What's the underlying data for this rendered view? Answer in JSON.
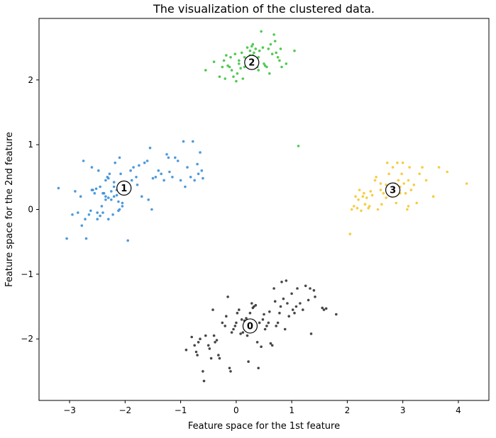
{
  "chart_data": {
    "type": "scatter",
    "title": "The visualization of the clustered data.",
    "xlabel": "Feature space for the 1st feature",
    "ylabel": "Feature space for the 2nd feature",
    "xlim": [
      -3.55,
      4.55
    ],
    "ylim": [
      -2.95,
      2.95
    ],
    "xticks": [
      -3,
      -2,
      -1,
      0,
      1,
      2,
      3,
      4
    ],
    "yticks": [
      -2,
      -1,
      0,
      1,
      2
    ],
    "xtick_labels": [
      "−3",
      "−2",
      "−1",
      "0",
      "1",
      "2",
      "3",
      "4"
    ],
    "ytick_labels": [
      "−2",
      "−1",
      "0",
      "1",
      "2"
    ],
    "grid": false,
    "series": [
      {
        "cluster": "0",
        "color": "#333333",
        "center": [
          0.25,
          -1.8
        ],
        "points": [
          [
            -0.9,
            -2.17
          ],
          [
            -0.8,
            -1.97
          ],
          [
            -0.75,
            -2.1
          ],
          [
            -0.72,
            -2.2
          ],
          [
            -0.7,
            -2.25
          ],
          [
            -0.68,
            -2.05
          ],
          [
            -0.65,
            -2.0
          ],
          [
            -0.6,
            -2.5
          ],
          [
            -0.58,
            -2.65
          ],
          [
            -0.55,
            -1.95
          ],
          [
            -0.5,
            -2.1
          ],
          [
            -0.48,
            -2.15
          ],
          [
            -0.45,
            -2.3
          ],
          [
            -0.42,
            -1.55
          ],
          [
            -0.4,
            -1.95
          ],
          [
            -0.38,
            -2.05
          ],
          [
            -0.35,
            -2.02
          ],
          [
            -0.32,
            -2.25
          ],
          [
            -0.3,
            -2.3
          ],
          [
            -0.25,
            -1.75
          ],
          [
            -0.2,
            -1.8
          ],
          [
            -0.18,
            -1.65
          ],
          [
            -0.15,
            -1.35
          ],
          [
            -0.12,
            -2.45
          ],
          [
            -0.1,
            -2.5
          ],
          [
            -0.08,
            -1.9
          ],
          [
            -0.05,
            -1.85
          ],
          [
            -0.02,
            -1.8
          ],
          [
            0.0,
            -1.75
          ],
          [
            0.02,
            -1.6
          ],
          [
            0.05,
            -1.55
          ],
          [
            0.08,
            -1.92
          ],
          [
            0.1,
            -1.7
          ],
          [
            0.12,
            -1.9
          ],
          [
            0.15,
            -1.72
          ],
          [
            0.18,
            -1.68
          ],
          [
            0.2,
            -1.95
          ],
          [
            0.22,
            -2.35
          ],
          [
            0.25,
            -1.6
          ],
          [
            0.28,
            -1.45
          ],
          [
            0.3,
            -1.52
          ],
          [
            0.32,
            -1.5
          ],
          [
            0.35,
            -1.48
          ],
          [
            0.38,
            -2.05
          ],
          [
            0.4,
            -2.45
          ],
          [
            0.42,
            -1.75
          ],
          [
            0.45,
            -2.12
          ],
          [
            0.48,
            -1.7
          ],
          [
            0.5,
            -1.62
          ],
          [
            0.52,
            -1.85
          ],
          [
            0.55,
            -1.8
          ],
          [
            0.58,
            -1.75
          ],
          [
            0.6,
            -1.58
          ],
          [
            0.62,
            -2.07
          ],
          [
            0.65,
            -2.1
          ],
          [
            0.68,
            -1.22
          ],
          [
            0.7,
            -1.42
          ],
          [
            0.72,
            -1.8
          ],
          [
            0.75,
            -1.75
          ],
          [
            0.78,
            -1.6
          ],
          [
            0.8,
            -1.5
          ],
          [
            0.82,
            -1.12
          ],
          [
            0.85,
            -1.38
          ],
          [
            0.88,
            -1.85
          ],
          [
            0.9,
            -1.1
          ],
          [
            0.92,
            -1.45
          ],
          [
            0.95,
            -1.65
          ],
          [
            1.0,
            -1.3
          ],
          [
            1.02,
            -1.55
          ],
          [
            1.05,
            -1.6
          ],
          [
            1.08,
            -1.5
          ],
          [
            1.1,
            -1.22
          ],
          [
            1.15,
            -1.45
          ],
          [
            1.2,
            -1.55
          ],
          [
            1.25,
            -1.18
          ],
          [
            1.3,
            -1.4
          ],
          [
            1.33,
            -1.22
          ],
          [
            1.35,
            -1.92
          ],
          [
            1.4,
            -1.25
          ],
          [
            1.42,
            -1.35
          ],
          [
            1.55,
            -1.52
          ],
          [
            1.58,
            -1.55
          ],
          [
            1.62,
            -1.53
          ],
          [
            1.8,
            -1.62
          ]
        ]
      },
      {
        "cluster": "1",
        "color": "#3a8fd9",
        "center": [
          -2.02,
          0.33
        ],
        "points": [
          [
            -3.2,
            0.33
          ],
          [
            -3.05,
            -0.45
          ],
          [
            -2.95,
            -0.08
          ],
          [
            -2.9,
            0.28
          ],
          [
            -2.85,
            -0.05
          ],
          [
            -2.8,
            0.2
          ],
          [
            -2.78,
            -0.25
          ],
          [
            -2.75,
            0.75
          ],
          [
            -2.72,
            -0.15
          ],
          [
            -2.7,
            -0.45
          ],
          [
            -2.65,
            -0.08
          ],
          [
            -2.6,
            0.65
          ],
          [
            -2.58,
            0.3
          ],
          [
            -2.55,
            0.25
          ],
          [
            -2.52,
            0.32
          ],
          [
            -2.5,
            -0.15
          ],
          [
            -2.48,
            0.6
          ],
          [
            -2.45,
            0.35
          ],
          [
            -2.42,
            0.05
          ],
          [
            -2.4,
            -0.05
          ],
          [
            -2.38,
            0.25
          ],
          [
            -2.35,
            0.45
          ],
          [
            -2.32,
            0.5
          ],
          [
            -2.3,
            0.18
          ],
          [
            -2.28,
            0.55
          ],
          [
            -2.25,
            0.15
          ],
          [
            -2.22,
            -0.08
          ],
          [
            -2.2,
            0.2
          ],
          [
            -2.18,
            0.72
          ],
          [
            -2.15,
            0.3
          ],
          [
            -2.12,
            0.12
          ],
          [
            -2.1,
            0.8
          ],
          [
            -2.08,
            0.55
          ],
          [
            -2.05,
            0.05
          ],
          [
            -2.02,
            0.25
          ],
          [
            -2.0,
            0.42
          ],
          [
            -1.98,
            0.38
          ],
          [
            -1.95,
            -0.48
          ],
          [
            -1.9,
            0.6
          ],
          [
            -1.88,
            0.45
          ],
          [
            -1.85,
            0.65
          ],
          [
            -1.8,
            0.5
          ],
          [
            -1.78,
            0.38
          ],
          [
            -1.75,
            0.68
          ],
          [
            -1.7,
            0.2
          ],
          [
            -1.65,
            0.72
          ],
          [
            -1.6,
            0.75
          ],
          [
            -1.58,
            0.15
          ],
          [
            -1.55,
            0.95
          ],
          [
            -1.52,
            0.0
          ],
          [
            -1.5,
            0.48
          ],
          [
            -1.45,
            0.5
          ],
          [
            -1.4,
            0.6
          ],
          [
            -1.35,
            0.55
          ],
          [
            -1.3,
            0.45
          ],
          [
            -1.25,
            0.85
          ],
          [
            -1.22,
            0.8
          ],
          [
            -1.2,
            0.58
          ],
          [
            -1.15,
            0.5
          ],
          [
            -1.1,
            0.8
          ],
          [
            -1.05,
            0.75
          ],
          [
            -1.0,
            0.45
          ],
          [
            -0.95,
            1.05
          ],
          [
            -0.92,
            0.35
          ],
          [
            -0.88,
            0.65
          ],
          [
            -0.82,
            0.5
          ],
          [
            -0.78,
            1.05
          ],
          [
            -0.75,
            0.45
          ],
          [
            -0.7,
            0.7
          ],
          [
            -0.68,
            0.55
          ],
          [
            -0.65,
            0.88
          ],
          [
            -0.62,
            0.6
          ],
          [
            -0.6,
            0.48
          ],
          [
            -2.3,
            0.48
          ],
          [
            -2.35,
            0.15
          ],
          [
            -2.6,
            0.3
          ],
          [
            -2.4,
            0.25
          ],
          [
            -2.2,
            0.35
          ],
          [
            -2.25,
            0.28
          ],
          [
            -2.15,
            0.22
          ],
          [
            -2.45,
            -0.1
          ],
          [
            -2.62,
            -0.02
          ],
          [
            -2.5,
            -0.05
          ],
          [
            -2.3,
            -0.15
          ],
          [
            -2.1,
            0.0
          ],
          [
            -2.05,
            0.1
          ],
          [
            -2.35,
            0.2
          ],
          [
            -2.2,
            0.42
          ],
          [
            -2.12,
            -0.02
          ],
          [
            -2.0,
            0.3
          ]
        ]
      },
      {
        "cluster": "2",
        "color": "#3ec43e",
        "center": [
          0.28,
          2.27
        ],
        "points": [
          [
            -0.55,
            2.15
          ],
          [
            -0.4,
            2.28
          ],
          [
            -0.3,
            2.05
          ],
          [
            -0.25,
            2.2
          ],
          [
            -0.22,
            2.3
          ],
          [
            -0.2,
            2.02
          ],
          [
            -0.18,
            2.38
          ],
          [
            -0.15,
            2.22
          ],
          [
            -0.12,
            2.2
          ],
          [
            -0.1,
            2.35
          ],
          [
            -0.08,
            2.15
          ],
          [
            -0.05,
            2.05
          ],
          [
            -0.02,
            2.4
          ],
          [
            0.0,
            1.98
          ],
          [
            0.02,
            2.1
          ],
          [
            0.05,
            2.3
          ],
          [
            0.08,
            2.18
          ],
          [
            0.1,
            2.42
          ],
          [
            0.12,
            2.02
          ],
          [
            0.15,
            2.2
          ],
          [
            0.18,
            2.25
          ],
          [
            0.2,
            2.5
          ],
          [
            0.22,
            2.33
          ],
          [
            0.25,
            2.45
          ],
          [
            0.28,
            2.52
          ],
          [
            0.3,
            2.38
          ],
          [
            0.32,
            2.42
          ],
          [
            0.35,
            2.48
          ],
          [
            0.38,
            2.2
          ],
          [
            0.4,
            2.15
          ],
          [
            0.42,
            2.45
          ],
          [
            0.45,
            2.75
          ],
          [
            0.48,
            2.5
          ],
          [
            0.5,
            2.25
          ],
          [
            0.52,
            2.22
          ],
          [
            0.55,
            2.2
          ],
          [
            0.58,
            2.48
          ],
          [
            0.6,
            2.1
          ],
          [
            0.62,
            2.55
          ],
          [
            0.65,
            2.4
          ],
          [
            0.68,
            2.7
          ],
          [
            0.7,
            2.6
          ],
          [
            0.72,
            2.42
          ],
          [
            0.75,
            2.35
          ],
          [
            0.78,
            2.3
          ],
          [
            0.8,
            2.48
          ],
          [
            0.82,
            2.2
          ],
          [
            0.9,
            2.25
          ],
          [
            1.05,
            2.45
          ],
          [
            1.12,
            0.98
          ],
          [
            0.25,
            2.38
          ],
          [
            0.35,
            2.3
          ],
          [
            0.3,
            2.55
          ],
          [
            0.15,
            2.35
          ],
          [
            0.05,
            2.25
          ],
          [
            0.4,
            2.35
          ]
        ]
      },
      {
        "cluster": "3",
        "color": "#f5c82e",
        "center": [
          2.82,
          0.3
        ],
        "points": [
          [
            2.05,
            -0.38
          ],
          [
            2.08,
            0.0
          ],
          [
            2.12,
            0.05
          ],
          [
            2.15,
            0.2
          ],
          [
            2.18,
            0.02
          ],
          [
            2.2,
            0.15
          ],
          [
            2.22,
            0.3
          ],
          [
            2.25,
            -0.02
          ],
          [
            2.28,
            0.2
          ],
          [
            2.3,
            0.25
          ],
          [
            2.32,
            0.08
          ],
          [
            2.35,
            0.18
          ],
          [
            2.38,
            0.02
          ],
          [
            2.42,
            0.28
          ],
          [
            2.45,
            0.22
          ],
          [
            2.5,
            0.45
          ],
          [
            2.52,
            0.5
          ],
          [
            2.55,
            0.0
          ],
          [
            2.6,
            0.3
          ],
          [
            2.62,
            0.08
          ],
          [
            2.65,
            0.25
          ],
          [
            2.7,
            0.38
          ],
          [
            2.72,
            0.72
          ],
          [
            2.75,
            0.55
          ],
          [
            2.78,
            0.35
          ],
          [
            2.8,
            0.2
          ],
          [
            2.82,
            0.65
          ],
          [
            2.85,
            0.4
          ],
          [
            2.88,
            0.1
          ],
          [
            2.9,
            0.72
          ],
          [
            2.92,
            0.45
          ],
          [
            2.95,
            0.35
          ],
          [
            2.98,
            0.55
          ],
          [
            3.0,
            0.72
          ],
          [
            3.02,
            0.4
          ],
          [
            3.05,
            0.25
          ],
          [
            3.08,
            0.0
          ],
          [
            3.1,
            0.45
          ],
          [
            3.12,
            0.65
          ],
          [
            3.15,
            0.3
          ],
          [
            3.2,
            0.38
          ],
          [
            3.25,
            0.1
          ],
          [
            3.3,
            0.55
          ],
          [
            3.35,
            0.65
          ],
          [
            3.42,
            0.45
          ],
          [
            3.55,
            0.2
          ],
          [
            3.65,
            0.65
          ],
          [
            3.8,
            0.58
          ],
          [
            4.15,
            0.4
          ],
          [
            2.4,
            0.05
          ],
          [
            2.7,
            0.18
          ],
          [
            2.95,
            0.25
          ],
          [
            3.1,
            0.05
          ],
          [
            2.6,
            0.4
          ]
        ]
      }
    ]
  }
}
